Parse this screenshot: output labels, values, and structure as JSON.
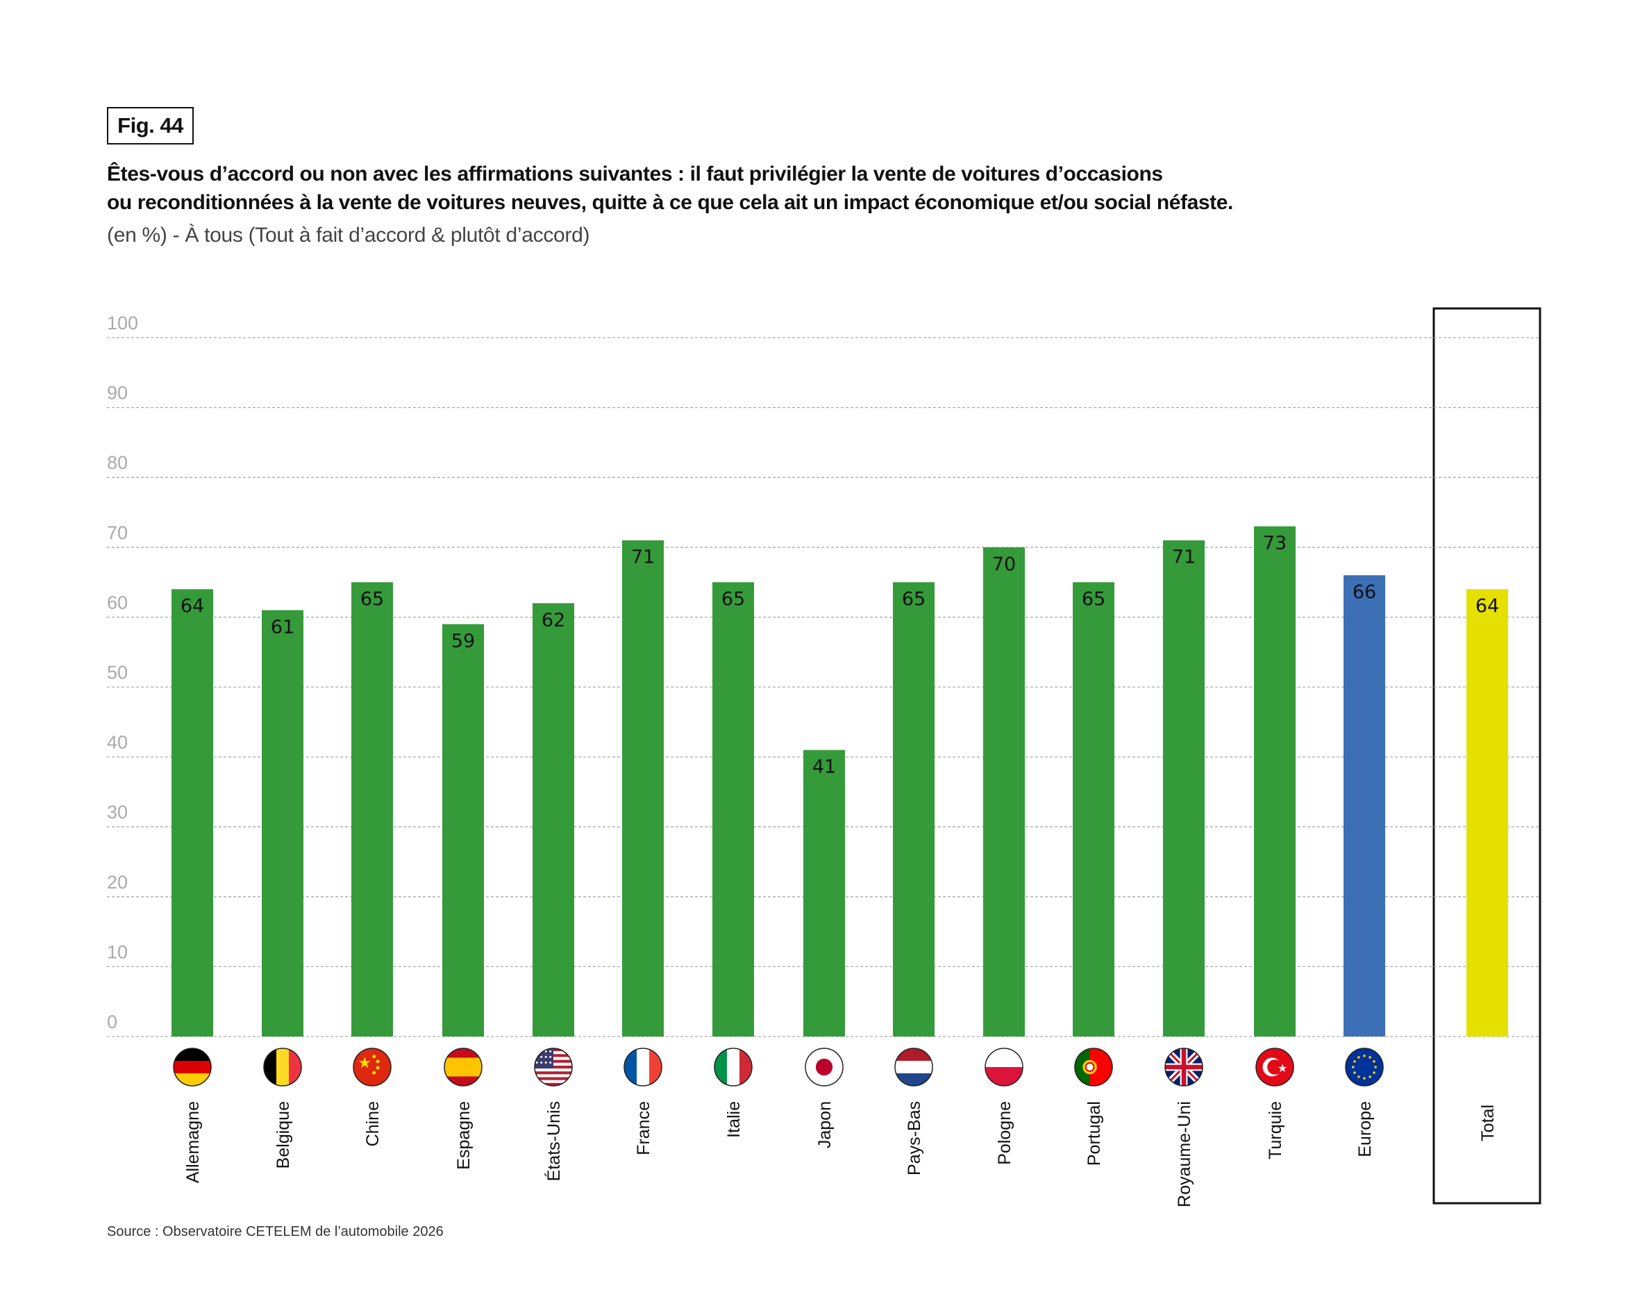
{
  "figure_label": "Fig. 44",
  "title_line1": "Êtes-vous d’accord ou non avec les affirmations suivantes : il faut privilégier la vente de voitures d’occasions",
  "title_line2": "ou reconditionnées à la vente de voitures neuves, quitte à ce que cela ait un impact économique et/ou social néfaste.",
  "subtitle": "(en %) - À tous (Tout à fait d’accord & plutôt d’accord)",
  "source": "Source : Observatoire CETELEM de l’automobile 2026",
  "colors": {
    "country": "#359a3a",
    "europe": "#3c6fb6",
    "total": "#e6e000",
    "grid": "#aaaaaa",
    "axis_label": "#aaaaaa"
  },
  "chart_data": {
    "type": "bar",
    "title": "Êtes-vous d’accord ou non avec les affirmations suivantes",
    "xlabel": "",
    "ylabel": "%",
    "ylim": [
      0,
      100
    ],
    "yticks": [
      0,
      10,
      20,
      30,
      40,
      50,
      60,
      70,
      80,
      90,
      100
    ],
    "grid": true,
    "categories": [
      "Allemagne",
      "Belgique",
      "Chine",
      "Espagne",
      "États-Unis",
      "France",
      "Italie",
      "Japon",
      "Pays-Bas",
      "Pologne",
      "Portugal",
      "Royaume-Uni",
      "Turquie",
      "Europe",
      "Total"
    ],
    "values": [
      64,
      61,
      65,
      59,
      62,
      71,
      65,
      41,
      65,
      70,
      65,
      71,
      73,
      66,
      64
    ],
    "kinds": [
      "country",
      "country",
      "country",
      "country",
      "country",
      "country",
      "country",
      "country",
      "country",
      "country",
      "country",
      "country",
      "country",
      "europe",
      "total"
    ],
    "flags": [
      "flag-germany",
      "flag-belgium",
      "flag-china",
      "flag-spain",
      "flag-usa",
      "flag-france",
      "flag-italy",
      "flag-japan",
      "flag-netherlands",
      "flag-poland",
      "flag-portugal",
      "flag-uk",
      "flag-turkey",
      "flag-europe",
      ""
    ]
  }
}
